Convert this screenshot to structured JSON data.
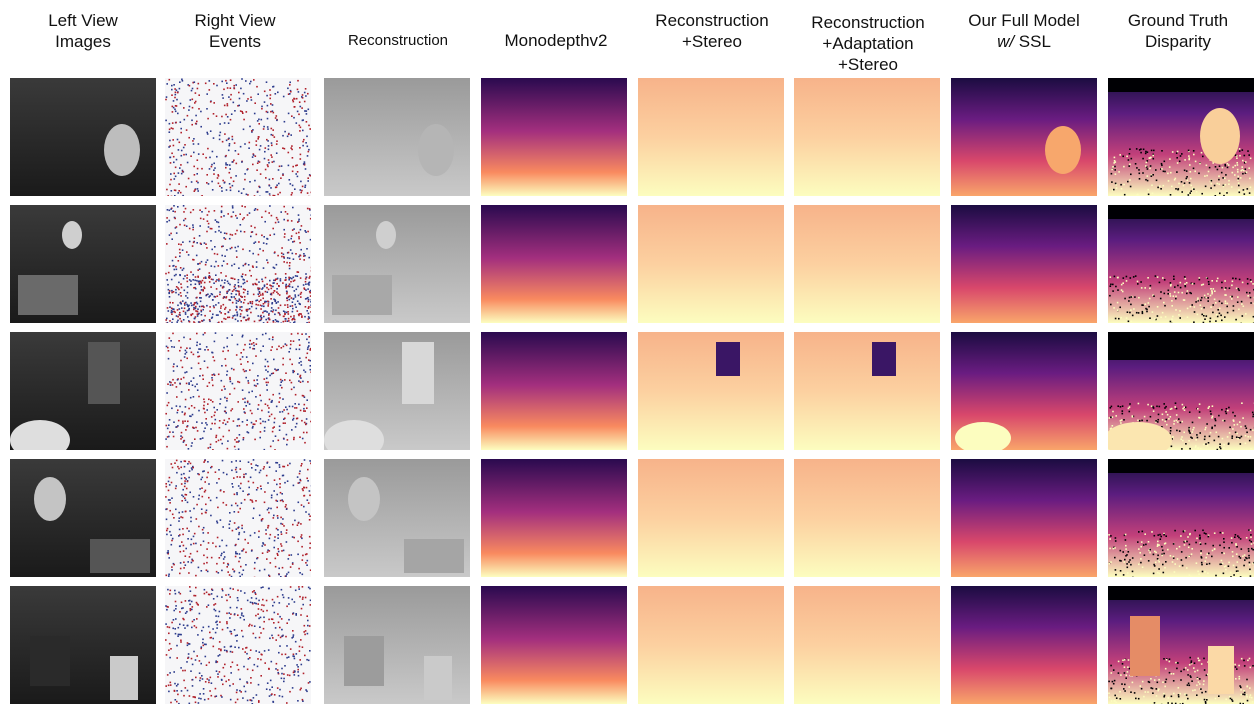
{
  "figure": {
    "columns": [
      {
        "key": "left",
        "lines": [
          "Left View",
          "Images"
        ]
      },
      {
        "key": "events",
        "lines": [
          "Right View",
          "Events"
        ]
      },
      {
        "key": "recon",
        "lines": [
          "Reconstruction"
        ]
      },
      {
        "key": "mono",
        "lines": [
          "Monodepthv2"
        ]
      },
      {
        "key": "recon_stereo",
        "lines": [
          "Reconstruction",
          "+Stereo"
        ]
      },
      {
        "key": "recon_adapt_stereo",
        "lines": [
          "Reconstruction",
          "+Adaptation",
          "+Stereo"
        ]
      },
      {
        "key": "ours",
        "lines": [
          "Our Full Model",
          "w/",
          "SSL"
        ]
      },
      {
        "key": "gt",
        "lines": [
          "Ground Truth",
          "Disparity"
        ]
      }
    ],
    "rows": [
      {
        "index": 1,
        "scene": "barrel"
      },
      {
        "index": 2,
        "scene": "barrel-and-mats"
      },
      {
        "index": 3,
        "scene": "door-panel-and-ball"
      },
      {
        "index": 4,
        "scene": "barrels-and-mats"
      },
      {
        "index": 5,
        "scene": "chair-and-clutter"
      }
    ],
    "colormap": {
      "near": "#fcfdbf",
      "mid": "#f2765f",
      "far": "#000004"
    }
  }
}
